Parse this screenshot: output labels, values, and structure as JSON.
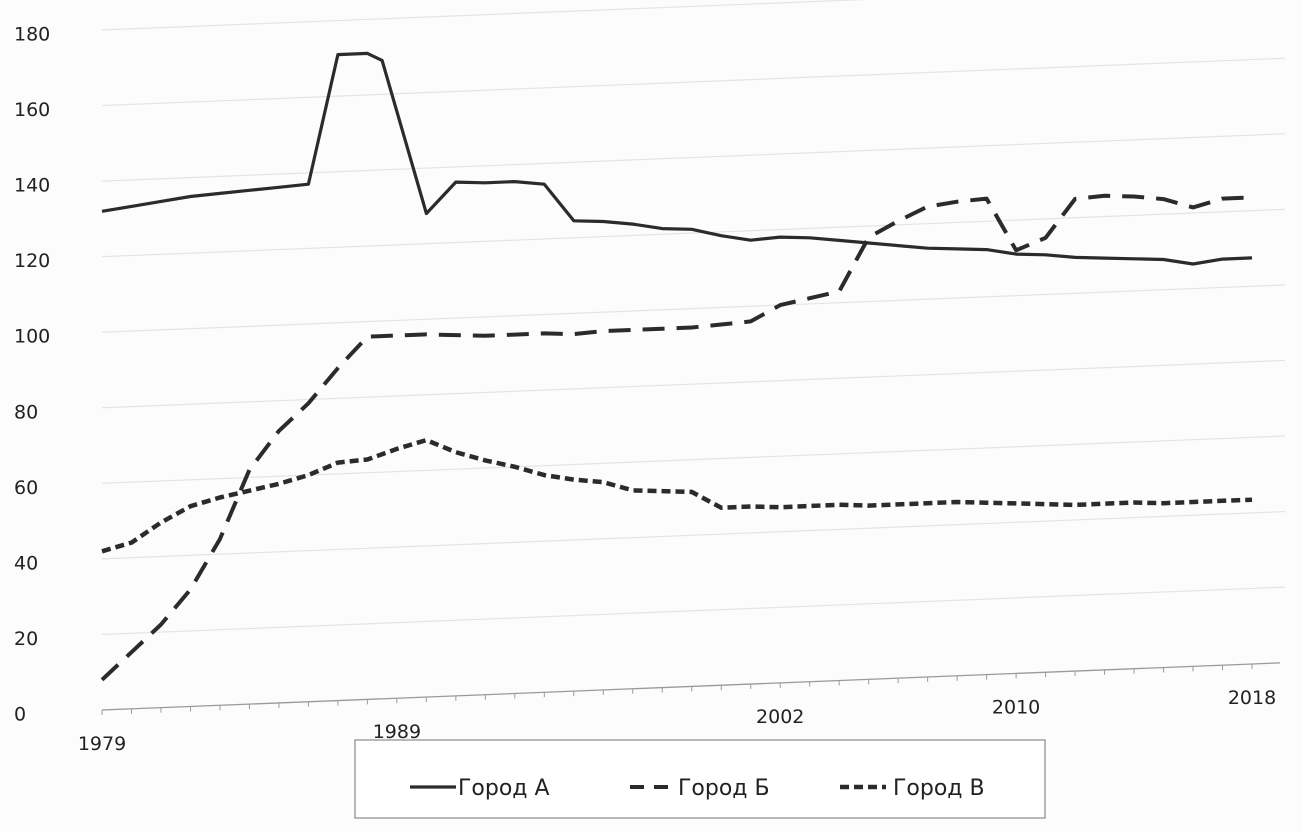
{
  "chart_data": {
    "type": "line",
    "title": "",
    "xlabel": "",
    "ylabel": "",
    "xlim": [
      1979,
      2018
    ],
    "ylim": [
      0,
      180
    ],
    "y_ticks": [
      0,
      20,
      40,
      60,
      80,
      100,
      120,
      140,
      160,
      180
    ],
    "x_tick_labels": [
      "1979",
      "1989",
      "2002",
      "2010",
      "2018"
    ],
    "grid": "horizontal",
    "legend_position": "bottom",
    "series": [
      {
        "name": "Город А",
        "style": "solid",
        "color": "#2b2b2b",
        "points": [
          [
            1979,
            132
          ],
          [
            1980,
            133
          ],
          [
            1981,
            134
          ],
          [
            1982,
            135
          ],
          [
            1983,
            135.5
          ],
          [
            1984,
            136
          ],
          [
            1985,
            136.5
          ],
          [
            1986,
            137
          ],
          [
            1987,
            171
          ],
          [
            1988,
            171
          ],
          [
            1988.5,
            169
          ],
          [
            1990,
            128
          ],
          [
            1991,
            136
          ],
          [
            1992,
            135.5
          ],
          [
            1993,
            135.5
          ],
          [
            1994,
            134.5
          ],
          [
            1995,
            124.5
          ],
          [
            1996,
            124
          ],
          [
            1997,
            123
          ],
          [
            1998,
            121.5
          ],
          [
            1999,
            121
          ],
          [
            2000,
            119
          ],
          [
            2001,
            117.5
          ],
          [
            2002,
            118
          ],
          [
            2003,
            117.5
          ],
          [
            2004,
            116.5
          ],
          [
            2005,
            115.5
          ],
          [
            2006,
            114.5
          ],
          [
            2007,
            113.5
          ],
          [
            2008,
            113
          ],
          [
            2009,
            112.5
          ],
          [
            2010,
            111
          ],
          [
            2011,
            110.5
          ],
          [
            2012,
            109.5
          ],
          [
            2013,
            109
          ],
          [
            2014,
            108.5
          ],
          [
            2015,
            108
          ],
          [
            2016,
            106.5
          ],
          [
            2017,
            107.5
          ],
          [
            2018,
            107.5
          ]
        ]
      },
      {
        "name": "Город Б",
        "style": "dashed",
        "color": "#2b2b2b",
        "points": [
          [
            1979,
            8
          ],
          [
            1980,
            15
          ],
          [
            1981,
            22
          ],
          [
            1982,
            31
          ],
          [
            1983,
            44
          ],
          [
            1984,
            62
          ],
          [
            1985,
            72
          ],
          [
            1986,
            79
          ],
          [
            1987,
            88
          ],
          [
            1988,
            96
          ],
          [
            1989,
            96
          ],
          [
            1990,
            96
          ],
          [
            1991,
            95.5
          ],
          [
            1992,
            95
          ],
          [
            1993,
            95
          ],
          [
            1994,
            95
          ],
          [
            1995,
            94.5
          ],
          [
            1996,
            95
          ],
          [
            1997,
            95
          ],
          [
            1998,
            95
          ],
          [
            1999,
            95
          ],
          [
            2000,
            95.5
          ],
          [
            2001,
            96
          ],
          [
            2002,
            100
          ],
          [
            2003,
            101.5
          ],
          [
            2004,
            103
          ],
          [
            2005,
            117
          ],
          [
            2006,
            121
          ],
          [
            2007,
            124.5
          ],
          [
            2008,
            125.5
          ],
          [
            2009,
            126
          ],
          [
            2010,
            112
          ],
          [
            2011,
            115
          ],
          [
            2012,
            125
          ],
          [
            2013,
            125.5
          ],
          [
            2014,
            125
          ],
          [
            2015,
            124
          ],
          [
            2016,
            121.5
          ],
          [
            2017,
            123.5
          ],
          [
            2018,
            123.5
          ]
        ]
      },
      {
        "name": "Город В",
        "style": "dotted-dash",
        "color": "#2b2b2b",
        "points": [
          [
            1979,
            42
          ],
          [
            1980,
            44
          ],
          [
            1981,
            49
          ],
          [
            1982,
            53
          ],
          [
            1983,
            55
          ],
          [
            1984,
            56.5
          ],
          [
            1985,
            58
          ],
          [
            1986,
            60
          ],
          [
            1987,
            63
          ],
          [
            1988,
            63.5
          ],
          [
            1989,
            66
          ],
          [
            1990,
            68
          ],
          [
            1991,
            64.5
          ],
          [
            1992,
            62
          ],
          [
            1993,
            60
          ],
          [
            1994,
            57.5
          ],
          [
            1995,
            56
          ],
          [
            1996,
            55
          ],
          [
            1997,
            52.5
          ],
          [
            1998,
            52
          ],
          [
            1999,
            51.5
          ],
          [
            2000,
            47
          ],
          [
            2001,
            47
          ],
          [
            2002,
            46.5
          ],
          [
            2003,
            46.5
          ],
          [
            2004,
            46.5
          ],
          [
            2005,
            46
          ],
          [
            2006,
            46
          ],
          [
            2007,
            46
          ],
          [
            2008,
            46
          ],
          [
            2009,
            45.5
          ],
          [
            2010,
            45
          ],
          [
            2011,
            44.5
          ],
          [
            2012,
            44
          ],
          [
            2013,
            44
          ],
          [
            2014,
            44
          ],
          [
            2015,
            43.5
          ],
          [
            2016,
            43.5
          ],
          [
            2017,
            43.5
          ],
          [
            2018,
            43.5
          ]
        ]
      }
    ]
  }
}
